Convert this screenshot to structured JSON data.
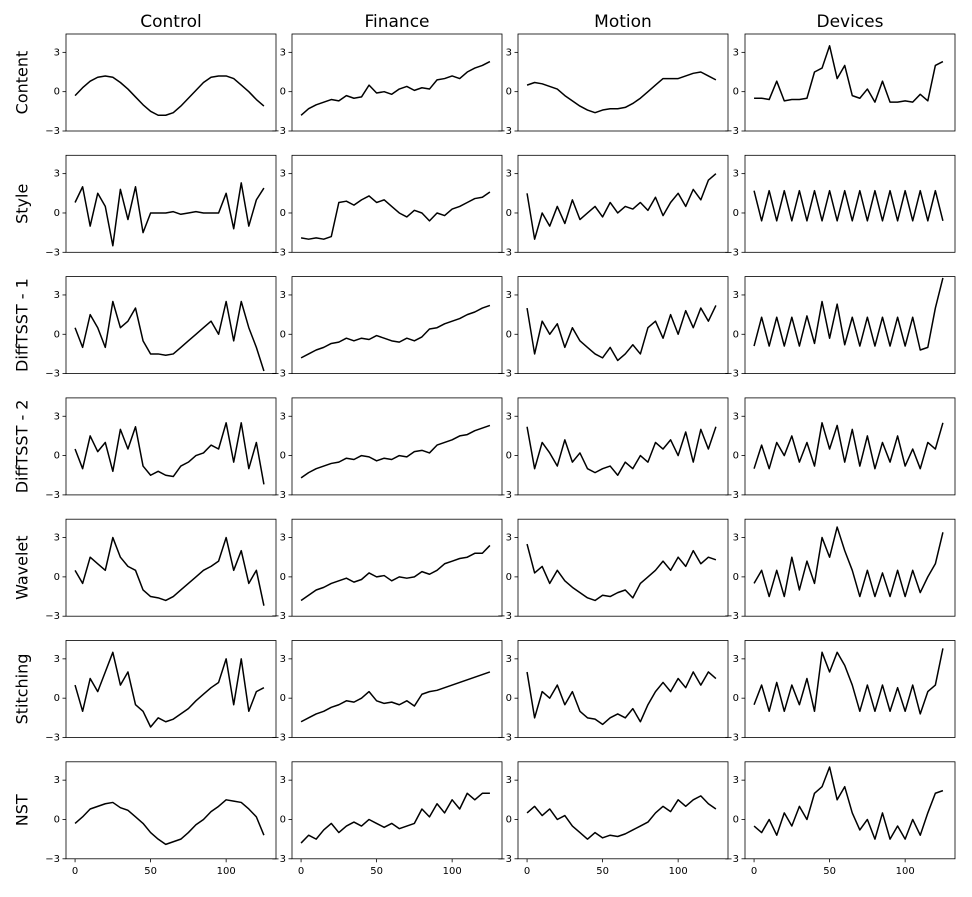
{
  "chart_data": {
    "type": "line",
    "color": "#000000",
    "columns": [
      "Control",
      "Finance",
      "Motion",
      "Devices"
    ],
    "rows": [
      "Content",
      "Style",
      "DiffTSST - 1",
      "DiffTSST - 2",
      "Wavelet",
      "Stitching",
      "NST"
    ],
    "x": [
      0,
      5,
      10,
      15,
      20,
      25,
      30,
      35,
      40,
      45,
      50,
      55,
      60,
      65,
      70,
      75,
      80,
      85,
      90,
      95,
      100,
      105,
      110,
      115,
      120,
      125
    ],
    "xlim": [
      -6,
      133
    ],
    "xticks": [
      0,
      50,
      100
    ],
    "ylim": [
      -3,
      4.4
    ],
    "yticks": [
      {
        "value": -3,
        "label": "−3"
      },
      0,
      3
    ],
    "panels": [
      [
        [
          -0.3,
          0.3,
          0.8,
          1.1,
          1.2,
          1.1,
          0.7,
          0.2,
          -0.4,
          -1.0,
          -1.5,
          -1.8,
          -1.8,
          -1.6,
          -1.1,
          -0.5,
          0.1,
          0.7,
          1.1,
          1.2,
          1.2,
          1.0,
          0.5,
          0,
          -0.6,
          -1.1
        ],
        [
          -1.8,
          -1.3,
          -1.0,
          -0.8,
          -0.6,
          -0.7,
          -0.3,
          -0.5,
          -0.4,
          0.5,
          -0.1,
          0,
          -0.2,
          0.2,
          0.4,
          0.1,
          0.3,
          0.2,
          0.9,
          1.0,
          1.2,
          1.0,
          1.5,
          1.8,
          2.0,
          2.3
        ],
        [
          0.5,
          0.7,
          0.6,
          0.4,
          0.2,
          -0.3,
          -0.7,
          -1.1,
          -1.4,
          -1.6,
          -1.4,
          -1.3,
          -1.3,
          -1.2,
          -0.9,
          -0.5,
          0,
          0.5,
          1.0,
          1.0,
          1.0,
          1.2,
          1.4,
          1.5,
          1.2,
          0.9
        ],
        [
          -0.5,
          -0.5,
          -0.6,
          0.8,
          -0.7,
          -0.6,
          -0.6,
          -0.5,
          1.5,
          1.8,
          3.5,
          1.0,
          2.0,
          -0.3,
          -0.5,
          0.2,
          -0.8,
          0.8,
          -0.8,
          -0.8,
          -0.7,
          -0.8,
          -0.2,
          -0.7,
          2.0,
          2.3
        ]
      ],
      [
        [
          0.8,
          2.0,
          -1.0,
          1.5,
          0.5,
          -2.5,
          1.8,
          -0.5,
          2.0,
          -1.5,
          0,
          0,
          0,
          0.1,
          -0.1,
          0,
          0.1,
          0,
          0,
          0,
          1.5,
          -1.2,
          2.3,
          -1.0,
          1.0,
          1.9
        ],
        [
          -1.9,
          -2.0,
          -1.9,
          -2.0,
          -1.8,
          0.8,
          0.9,
          0.6,
          1.0,
          1.3,
          0.8,
          1.0,
          0.5,
          0,
          -0.3,
          0.2,
          0,
          -0.6,
          0,
          -0.2,
          0.3,
          0.5,
          0.8,
          1.1,
          1.2,
          1.6
        ],
        [
          1.5,
          -2.0,
          0,
          -1.0,
          0.5,
          -0.8,
          1.0,
          -0.5,
          0,
          0.5,
          -0.3,
          0.8,
          0,
          0.5,
          0.3,
          0.8,
          0.2,
          1.2,
          -0.2,
          0.8,
          1.5,
          0.5,
          1.8,
          1.0,
          2.5,
          3.0
        ],
        [
          1.7,
          -0.6,
          1.7,
          -0.6,
          1.7,
          -0.6,
          1.7,
          -0.6,
          1.7,
          -0.6,
          1.7,
          -0.6,
          1.7,
          -0.6,
          1.7,
          -0.6,
          1.7,
          -0.6,
          1.7,
          -0.6,
          1.7,
          -0.6,
          1.7,
          -0.6,
          1.7,
          -0.6
        ]
      ],
      [
        [
          0.5,
          -1.0,
          1.5,
          0.5,
          -1.0,
          2.5,
          0.5,
          1.0,
          2.0,
          -0.5,
          -1.5,
          -1.5,
          -1.6,
          -1.5,
          -1.0,
          -0.5,
          0,
          0.5,
          1.0,
          0,
          2.5,
          -0.5,
          2.5,
          0.5,
          -1.0,
          -2.8
        ],
        [
          -1.8,
          -1.5,
          -1.2,
          -1.0,
          -0.7,
          -0.6,
          -0.3,
          -0.5,
          -0.3,
          -0.4,
          -0.1,
          -0.3,
          -0.5,
          -0.6,
          -0.3,
          -0.5,
          -0.2,
          0.4,
          0.5,
          0.8,
          1.0,
          1.2,
          1.5,
          1.7,
          2.0,
          2.2
        ],
        [
          2.0,
          -1.5,
          1.0,
          0,
          0.8,
          -1.0,
          0.5,
          -0.5,
          -1.0,
          -1.5,
          -1.8,
          -1.0,
          -2.0,
          -1.5,
          -0.8,
          -1.5,
          0.5,
          1.0,
          -0.3,
          1.5,
          0,
          1.8,
          0.5,
          2.0,
          1.0,
          2.2
        ],
        [
          -0.9,
          1.3,
          -0.9,
          1.3,
          -0.9,
          1.3,
          -0.9,
          1.4,
          -0.7,
          2.5,
          -0.3,
          2.3,
          -0.8,
          1.3,
          -0.9,
          1.3,
          -0.9,
          1.3,
          -0.9,
          1.3,
          -0.9,
          1.3,
          -1.2,
          -1.0,
          2.0,
          4.3
        ]
      ],
      [
        [
          0.5,
          -1.0,
          1.5,
          0.3,
          1.0,
          -1.2,
          2.0,
          0.5,
          2.2,
          -0.8,
          -1.5,
          -1.2,
          -1.5,
          -1.6,
          -0.8,
          -0.5,
          0,
          0.2,
          0.8,
          0.5,
          2.5,
          -0.5,
          2.5,
          -1.0,
          1.0,
          -2.2
        ],
        [
          -1.7,
          -1.3,
          -1.0,
          -0.8,
          -0.6,
          -0.5,
          -0.2,
          -0.3,
          0,
          -0.1,
          -0.4,
          -0.2,
          -0.3,
          0,
          -0.1,
          0.3,
          0.4,
          0.2,
          0.8,
          1.0,
          1.2,
          1.5,
          1.6,
          1.9,
          2.1,
          2.3
        ],
        [
          2.2,
          -1.0,
          1.0,
          0.2,
          -0.8,
          1.2,
          -0.5,
          0.2,
          -1.0,
          -1.3,
          -1.0,
          -0.8,
          -1.5,
          -0.5,
          -1.0,
          0,
          -0.5,
          1.0,
          0.5,
          1.2,
          0,
          1.8,
          -0.5,
          2.0,
          0.5,
          2.2
        ],
        [
          -1.0,
          0.8,
          -1.0,
          1.0,
          0,
          1.5,
          -0.5,
          1.0,
          -0.8,
          2.5,
          0.5,
          2.3,
          -0.5,
          2.0,
          -0.8,
          1.5,
          -1.0,
          1.0,
          -0.5,
          1.5,
          -0.8,
          0.5,
          -1.0,
          1.0,
          0.5,
          2.5
        ]
      ],
      [
        [
          0.5,
          -0.5,
          1.5,
          1.0,
          0.5,
          3.0,
          1.5,
          0.8,
          0.5,
          -1.0,
          -1.5,
          -1.6,
          -1.8,
          -1.5,
          -1.0,
          -0.5,
          0,
          0.5,
          0.8,
          1.2,
          3.0,
          0.5,
          2.0,
          -0.5,
          0.5,
          -2.2
        ],
        [
          -1.8,
          -1.4,
          -1.0,
          -0.8,
          -0.5,
          -0.3,
          -0.1,
          -0.4,
          -0.2,
          0.3,
          0,
          0.1,
          -0.3,
          0,
          -0.1,
          0,
          0.4,
          0.2,
          0.5,
          1.0,
          1.2,
          1.4,
          1.5,
          1.8,
          1.8,
          2.4
        ],
        [
          2.5,
          0.3,
          0.8,
          -0.5,
          0.5,
          -0.3,
          -0.8,
          -1.2,
          -1.6,
          -1.8,
          -1.4,
          -1.5,
          -1.2,
          -1.0,
          -1.6,
          -0.5,
          0,
          0.5,
          1.2,
          0.5,
          1.5,
          0.8,
          2.0,
          1.0,
          1.5,
          1.3
        ],
        [
          -0.5,
          0.5,
          -1.5,
          0.5,
          -1.5,
          1.5,
          -1.0,
          1.2,
          -0.5,
          3.0,
          1.5,
          3.8,
          2.0,
          0.5,
          -1.5,
          0.5,
          -1.5,
          0.3,
          -1.5,
          0.5,
          -1.5,
          0.5,
          -1.2,
          0,
          1.0,
          3.4
        ]
      ],
      [
        [
          1.0,
          -1.0,
          1.5,
          0.5,
          2.0,
          3.5,
          1.0,
          2.0,
          -0.5,
          -1.0,
          -2.2,
          -1.5,
          -1.8,
          -1.6,
          -1.2,
          -0.8,
          -0.2,
          0.3,
          0.8,
          1.2,
          3.0,
          -0.5,
          3.0,
          -1.0,
          0.5,
          0.8
        ],
        [
          -1.8,
          -1.5,
          -1.2,
          -1.0,
          -0.7,
          -0.5,
          -0.2,
          -0.3,
          0,
          0.5,
          -0.2,
          -0.4,
          -0.3,
          -0.5,
          -0.2,
          -0.6,
          0.3,
          0.5,
          0.6,
          0.8,
          1.0,
          1.2,
          1.4,
          1.6,
          1.8,
          2.0
        ],
        [
          2.0,
          -1.5,
          0.5,
          0,
          1.0,
          -0.5,
          0.5,
          -1.0,
          -1.5,
          -1.6,
          -2.0,
          -1.5,
          -1.2,
          -1.5,
          -0.8,
          -1.8,
          -0.5,
          0.5,
          1.2,
          0.5,
          1.5,
          0.8,
          2.0,
          1.0,
          2.0,
          1.5
        ],
        [
          -0.5,
          1.0,
          -1.0,
          1.2,
          -1.0,
          1.0,
          -0.5,
          1.5,
          -1.0,
          3.5,
          2.0,
          3.5,
          2.5,
          1.0,
          -1.0,
          1.0,
          -1.0,
          1.0,
          -1.0,
          0.8,
          -1.0,
          1.0,
          -1.2,
          0.5,
          1.0,
          3.8
        ]
      ],
      [
        [
          -0.3,
          0.2,
          0.8,
          1.0,
          1.2,
          1.3,
          0.9,
          0.7,
          0.2,
          -0.3,
          -1.0,
          -1.5,
          -1.9,
          -1.7,
          -1.5,
          -1.0,
          -0.4,
          0,
          0.6,
          1.0,
          1.5,
          1.4,
          1.3,
          0.8,
          0.2,
          -1.2
        ],
        [
          -1.8,
          -1.2,
          -1.5,
          -0.8,
          -0.3,
          -1.0,
          -0.5,
          -0.2,
          -0.5,
          0,
          -0.3,
          -0.6,
          -0.3,
          -0.7,
          -0.5,
          -0.3,
          0.8,
          0.2,
          1.2,
          0.5,
          1.5,
          0.8,
          2.0,
          1.5,
          2.0,
          2.0
        ],
        [
          0.5,
          1.0,
          0.3,
          0.8,
          0,
          0.3,
          -0.5,
          -1.0,
          -1.5,
          -1.0,
          -1.4,
          -1.2,
          -1.3,
          -1.1,
          -0.8,
          -0.5,
          -0.2,
          0.5,
          1.0,
          0.6,
          1.5,
          1.0,
          1.5,
          1.8,
          1.2,
          0.8
        ],
        [
          -0.5,
          -1.0,
          0,
          -1.2,
          0.5,
          -0.5,
          1.0,
          0,
          2.0,
          2.5,
          4.0,
          1.5,
          2.5,
          0.5,
          -0.8,
          0,
          -1.5,
          0.5,
          -1.5,
          -0.5,
          -1.5,
          0,
          -1.2,
          0.5,
          2.0,
          2.2
        ]
      ]
    ]
  }
}
